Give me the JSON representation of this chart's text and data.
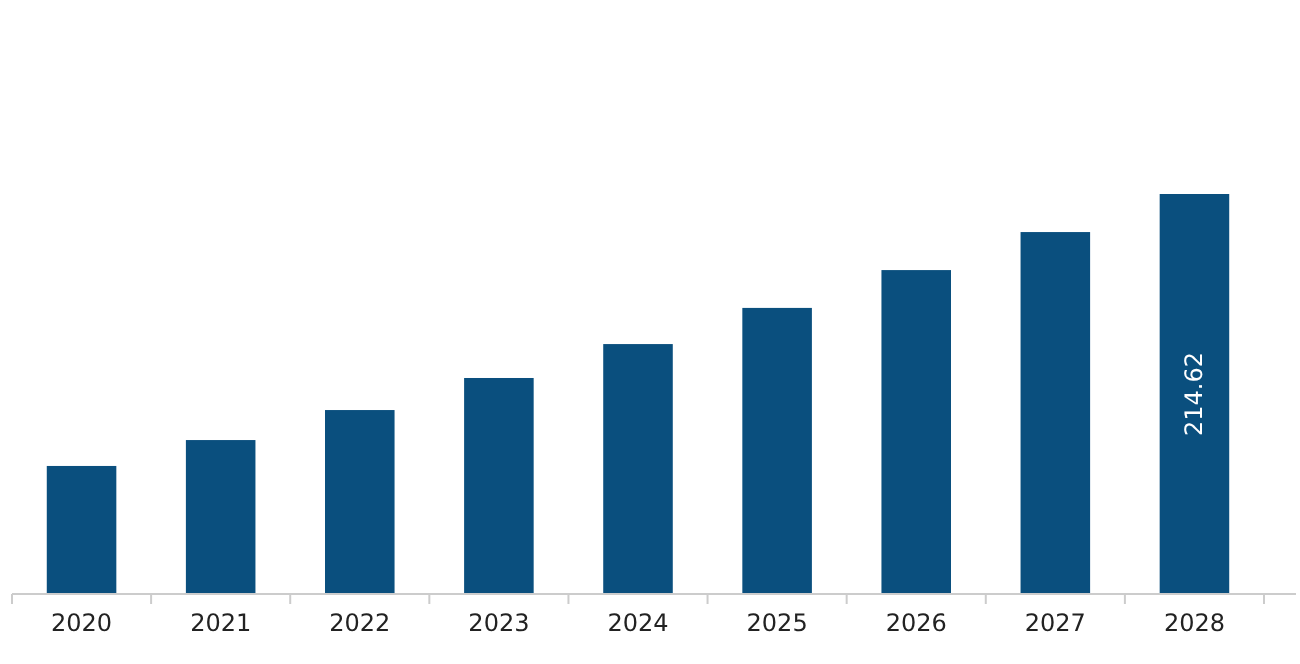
{
  "chart_data": {
    "type": "bar",
    "categories": [
      "2020",
      "2021",
      "2022",
      "2023",
      "2024",
      "2025",
      "2026",
      "2027",
      "2028"
    ],
    "values": [
      68.7,
      82.6,
      98.7,
      115.9,
      134.1,
      153.5,
      173.8,
      194.2,
      214.62
    ],
    "value_labels": [
      null,
      null,
      null,
      null,
      null,
      null,
      null,
      null,
      "214.62"
    ],
    "color": "#0a4f7e"
  }
}
